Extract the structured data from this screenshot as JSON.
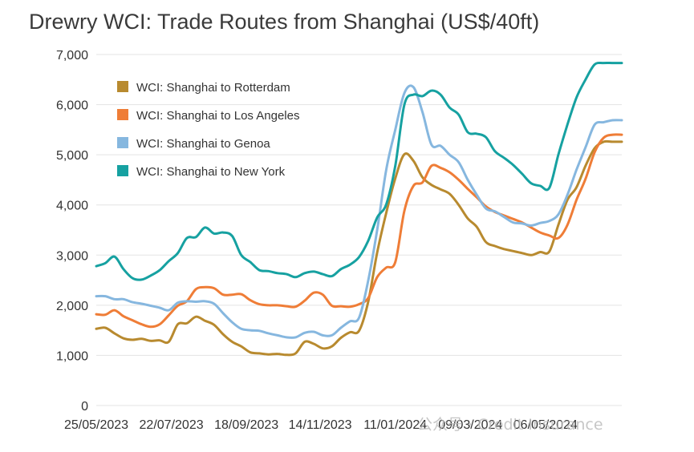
{
  "chart_data": {
    "type": "line",
    "title": "Drewry WCI: Trade Routes from Shanghai (US$/40ft)",
    "xlabel": "",
    "ylabel": "",
    "x_start": "2023-05-25",
    "x_end": "2024-07-04",
    "x_ticks": [
      "25/05/2023",
      "22/07/2023",
      "18/09/2023",
      "14/11/2023",
      "11/01/2024",
      "09/03/2024",
      "06/05/2024"
    ],
    "ylim": [
      0,
      7000
    ],
    "y_ticks": [
      0,
      1000,
      2000,
      3000,
      4000,
      5000,
      6000,
      7000
    ],
    "y_tick_labels": [
      "0",
      "1,000",
      "2,000",
      "3,000",
      "4,000",
      "5,000",
      "6,000",
      "7,000"
    ],
    "grid": "horizontal",
    "legend_position": "top-left",
    "x": [
      "2023-05-25",
      "2023-06-01",
      "2023-06-08",
      "2023-06-15",
      "2023-06-22",
      "2023-06-29",
      "2023-07-06",
      "2023-07-13",
      "2023-07-20",
      "2023-07-27",
      "2023-08-03",
      "2023-08-10",
      "2023-08-17",
      "2023-08-24",
      "2023-08-31",
      "2023-09-07",
      "2023-09-14",
      "2023-09-21",
      "2023-09-28",
      "2023-10-05",
      "2023-10-12",
      "2023-10-19",
      "2023-10-26",
      "2023-11-02",
      "2023-11-09",
      "2023-11-16",
      "2023-11-23",
      "2023-11-30",
      "2023-12-07",
      "2023-12-14",
      "2023-12-21",
      "2023-12-28",
      "2024-01-04",
      "2024-01-11",
      "2024-01-18",
      "2024-01-25",
      "2024-02-01",
      "2024-02-08",
      "2024-02-15",
      "2024-02-22",
      "2024-02-29",
      "2024-03-07",
      "2024-03-14",
      "2024-03-21",
      "2024-03-28",
      "2024-04-04",
      "2024-04-11",
      "2024-04-18",
      "2024-04-25",
      "2024-05-02",
      "2024-05-09",
      "2024-05-16",
      "2024-05-23",
      "2024-05-30",
      "2024-06-06",
      "2024-06-13",
      "2024-06-20",
      "2024-06-27",
      "2024-07-04"
    ],
    "series": [
      {
        "name": "WCI: Shanghai to Rotterdam",
        "color": "#b88a2f",
        "values": [
          1530,
          1550,
          1440,
          1340,
          1310,
          1330,
          1290,
          1300,
          1270,
          1620,
          1640,
          1770,
          1690,
          1610,
          1420,
          1270,
          1180,
          1060,
          1040,
          1020,
          1030,
          1010,
          1040,
          1270,
          1230,
          1140,
          1180,
          1350,
          1460,
          1490,
          2060,
          3050,
          3840,
          4530,
          5010,
          4880,
          4550,
          4400,
          4310,
          4220,
          4000,
          3730,
          3560,
          3260,
          3180,
          3120,
          3080,
          3040,
          3000,
          3060,
          3070,
          3600,
          4100,
          4350,
          4780,
          5130,
          5260,
          5260,
          5260
        ]
      },
      {
        "name": "WCI: Shanghai to Los Angeles",
        "color": "#ef7d37",
        "values": [
          1820,
          1810,
          1900,
          1780,
          1700,
          1620,
          1570,
          1620,
          1800,
          1990,
          2080,
          2320,
          2360,
          2340,
          2210,
          2210,
          2220,
          2100,
          2020,
          2000,
          2000,
          1980,
          1970,
          2090,
          2250,
          2210,
          1990,
          1980,
          1970,
          2020,
          2140,
          2560,
          2750,
          2860,
          3880,
          4380,
          4450,
          4780,
          4740,
          4650,
          4500,
          4320,
          4150,
          3970,
          3860,
          3790,
          3720,
          3650,
          3550,
          3450,
          3390,
          3340,
          3600,
          4100,
          4520,
          5050,
          5340,
          5400,
          5400
        ]
      },
      {
        "name": "WCI: Shanghai to Genoa",
        "color": "#86b7df",
        "values": [
          2180,
          2180,
          2120,
          2120,
          2060,
          2030,
          1990,
          1950,
          1900,
          2050,
          2080,
          2070,
          2080,
          2030,
          1840,
          1660,
          1530,
          1500,
          1490,
          1440,
          1400,
          1360,
          1360,
          1450,
          1470,
          1400,
          1400,
          1550,
          1680,
          1750,
          2480,
          3500,
          4700,
          5500,
          6230,
          6350,
          5850,
          5200,
          5180,
          5000,
          4850,
          4500,
          4200,
          3930,
          3870,
          3760,
          3650,
          3630,
          3590,
          3640,
          3680,
          3810,
          4200,
          4700,
          5150,
          5600,
          5650,
          5690,
          5690
        ]
      },
      {
        "name": "WCI: Shanghai to New York",
        "color": "#16a1a1",
        "values": [
          2780,
          2840,
          2970,
          2720,
          2540,
          2510,
          2590,
          2700,
          2880,
          3040,
          3340,
          3360,
          3550,
          3430,
          3450,
          3380,
          3000,
          2860,
          2700,
          2680,
          2640,
          2620,
          2560,
          2640,
          2670,
          2620,
          2580,
          2720,
          2810,
          2960,
          3280,
          3750,
          4010,
          4780,
          6000,
          6200,
          6170,
          6280,
          6200,
          5940,
          5800,
          5450,
          5420,
          5350,
          5070,
          4940,
          4800,
          4620,
          4430,
          4380,
          4340,
          5000,
          5600,
          6140,
          6500,
          6800,
          6830,
          6830,
          6830
        ]
      }
    ]
  },
  "watermark": {
    "text": "公众号 · Credit Insurance"
  }
}
